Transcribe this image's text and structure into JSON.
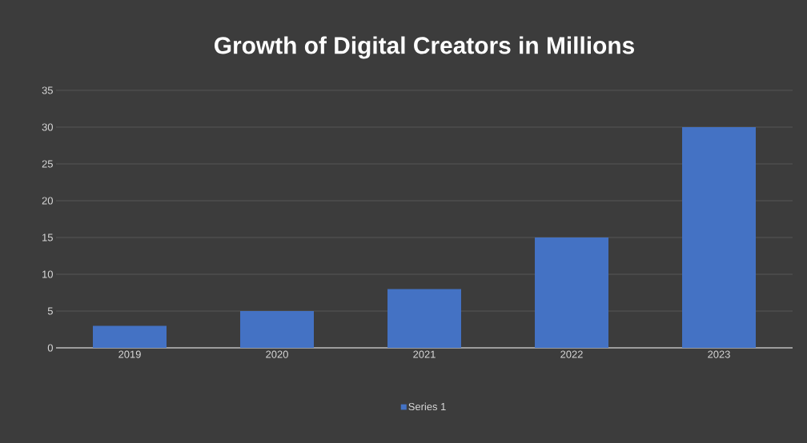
{
  "chart_data": {
    "type": "bar",
    "title": "Growth of Digital Creators in Millions",
    "categories": [
      "2019",
      "2020",
      "2021",
      "2022",
      "2023"
    ],
    "series": [
      {
        "name": "Series 1",
        "color": "#4472c4",
        "values": [
          3,
          5,
          8,
          15,
          30
        ]
      }
    ],
    "ylim": [
      0,
      35
    ],
    "yticks": [
      0,
      5,
      10,
      15,
      20,
      25,
      30,
      35
    ],
    "grid": "y",
    "legend": "bottom"
  }
}
